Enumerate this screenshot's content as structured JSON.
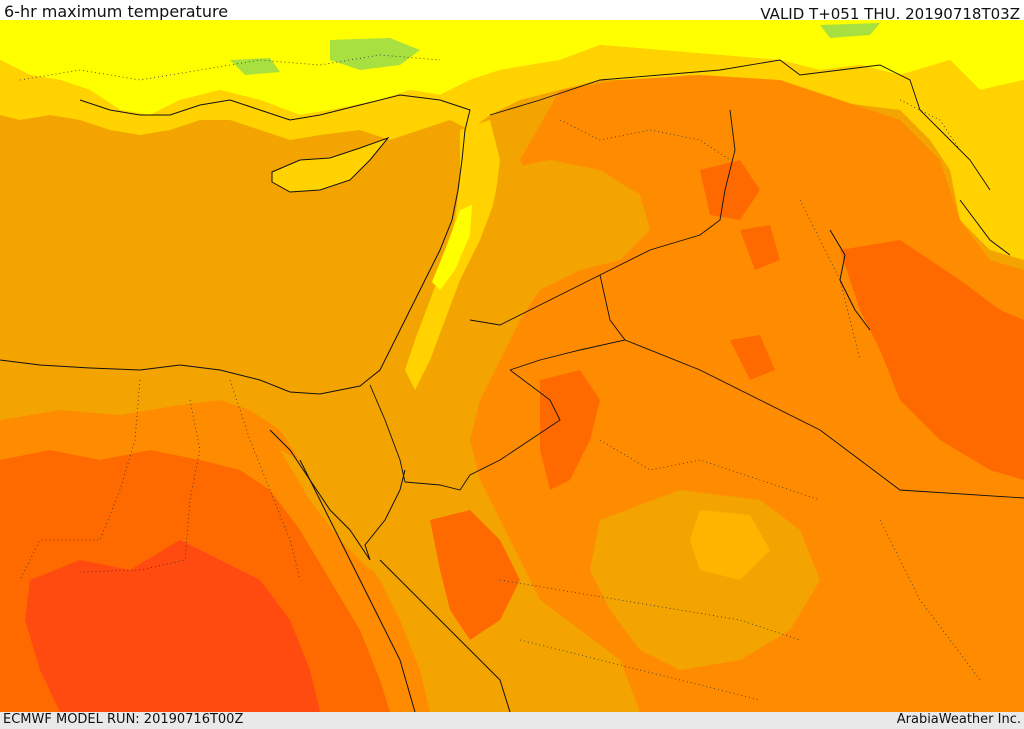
{
  "header": {
    "title": "6-hr maximum temperature",
    "valid": "VALID T+051 THU. 20190718T03Z"
  },
  "footer": {
    "model_run": "ECMWF MODEL RUN: 20190716T00Z",
    "credit": "ArabiaWeather Inc."
  },
  "map": {
    "colors": {
      "lightgreen": "#a8e040",
      "yellow": "#ffff00",
      "yellow_orange": "#ffd200",
      "light_orange": "#ffb400",
      "orange": "#f4a400",
      "deep_orange": "#ff8c00",
      "red_orange": "#ff6a00",
      "red": "#ff4a10"
    }
  }
}
